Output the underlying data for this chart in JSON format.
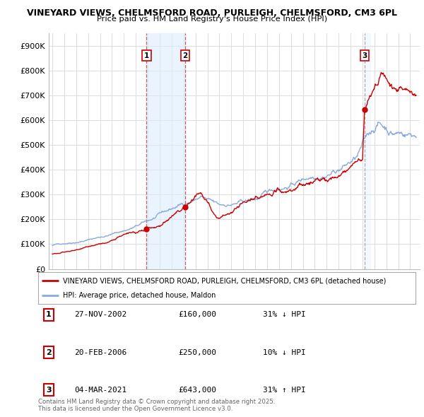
{
  "title_line1": "VINEYARD VIEWS, CHELMSFORD ROAD, PURLEIGH, CHELMSFORD, CM3 6PL",
  "title_line2": "Price paid vs. HM Land Registry's House Price Index (HPI)",
  "background_color": "#ffffff",
  "plot_bg_color": "#ffffff",
  "grid_color": "#dddddd",
  "red_line_color": "#cc0000",
  "blue_line_color": "#88aadd",
  "vline_color_red": "#cc3333",
  "vline_color_gray": "#888888",
  "vline_shade_blue": "#ddeeff",
  "ylim": [
    0,
    950000
  ],
  "yticks": [
    0,
    100000,
    200000,
    300000,
    400000,
    500000,
    600000,
    700000,
    800000,
    900000
  ],
  "ytick_labels": [
    "£0",
    "£100K",
    "£200K",
    "£300K",
    "£400K",
    "£500K",
    "£600K",
    "£700K",
    "£800K",
    "£900K"
  ],
  "sales": [
    {
      "label": "1",
      "date_num": 2002.9,
      "price": 160000,
      "vline_style": "red"
    },
    {
      "label": "2",
      "date_num": 2006.13,
      "price": 250000,
      "vline_style": "red"
    },
    {
      "label": "3",
      "date_num": 2021.17,
      "price": 643000,
      "vline_style": "gray"
    }
  ],
  "legend_red": "VINEYARD VIEWS, CHELMSFORD ROAD, PURLEIGH, CHELMSFORD, CM3 6PL (detached house)",
  "legend_blue": "HPI: Average price, detached house, Maldon",
  "table_rows": [
    {
      "num": "1",
      "date": "27-NOV-2002",
      "price": "£160,000",
      "hpi": "31% ↓ HPI"
    },
    {
      "num": "2",
      "date": "20-FEB-2006",
      "price": "£250,000",
      "hpi": "10% ↓ HPI"
    },
    {
      "num": "3",
      "date": "04-MAR-2021",
      "price": "£643,000",
      "hpi": "31% ↑ HPI"
    }
  ],
  "copyright_text": "Contains HM Land Registry data © Crown copyright and database right 2025.\nThis data is licensed under the Open Government Licence v3.0."
}
